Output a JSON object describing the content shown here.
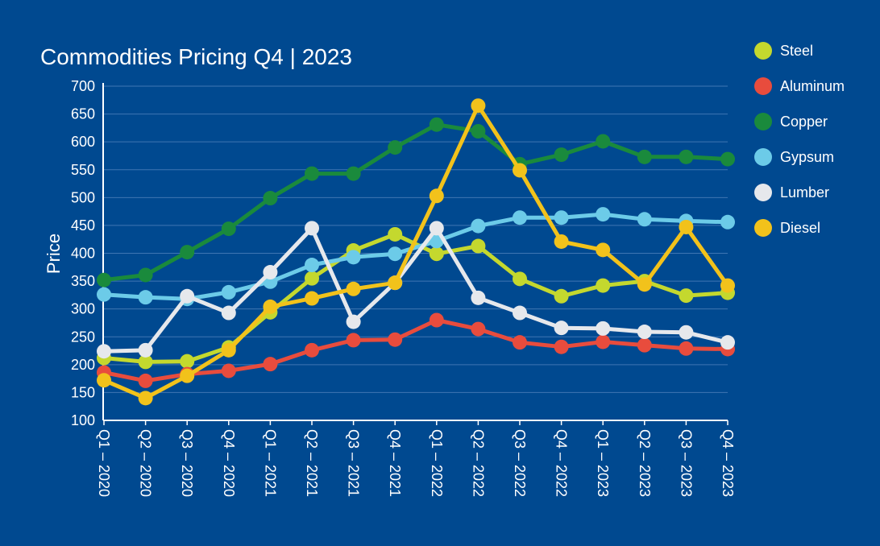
{
  "chart_data": {
    "type": "line",
    "title": "Commodities Pricing Q4 | 2023",
    "xlabel": "",
    "ylabel": "Price",
    "ylim": [
      100,
      700
    ],
    "yticks": [
      100,
      150,
      200,
      250,
      300,
      350,
      400,
      450,
      500,
      550,
      600,
      650,
      700
    ],
    "grid": true,
    "legend_position": "right",
    "categories": [
      "Q1 – 2020",
      "Q2 – 2020",
      "Q3 – 2020",
      "Q4 – 2020",
      "Q1 – 2021",
      "Q2 – 2021",
      "Q3 – 2021",
      "Q4 – 2021",
      "Q1 – 2022",
      "Q2 – 2022",
      "Q3 – 2022",
      "Q4 – 2022",
      "Q1 – 2023",
      "Q2 – 2023",
      "Q3 – 2023",
      "Q4 – 2023"
    ],
    "series": [
      {
        "name": "Steel",
        "color": "#c4d82e",
        "values": [
          212,
          205,
          206,
          231,
          294,
          355,
          405,
          434,
          399,
          413,
          354,
          323,
          342,
          350,
          324,
          329
        ]
      },
      {
        "name": "Aluminum",
        "color": "#e84c3d",
        "values": [
          186,
          171,
          183,
          189,
          201,
          226,
          244,
          245,
          280,
          264,
          240,
          232,
          241,
          235,
          229,
          228
        ]
      },
      {
        "name": "Copper",
        "color": "#1a8a3c",
        "values": [
          352,
          361,
          402,
          444,
          499,
          543,
          543,
          590,
          631,
          619,
          560,
          577,
          601,
          573,
          573,
          569
        ]
      },
      {
        "name": "Gypsum",
        "color": "#6ccbe8",
        "values": [
          326,
          321,
          318,
          330,
          349,
          379,
          393,
          399,
          422,
          449,
          464,
          464,
          470,
          461,
          458,
          456
        ]
      },
      {
        "name": "Lumber",
        "color": "#e6e8ec",
        "values": [
          224,
          226,
          323,
          293,
          366,
          445,
          277,
          347,
          445,
          320,
          293,
          266,
          265,
          259,
          258,
          240
        ]
      },
      {
        "name": "Diesel",
        "color": "#f2c21b",
        "values": [
          172,
          140,
          180,
          226,
          304,
          319,
          336,
          347,
          503,
          665,
          549,
          421,
          406,
          344,
          447,
          342
        ]
      }
    ]
  }
}
